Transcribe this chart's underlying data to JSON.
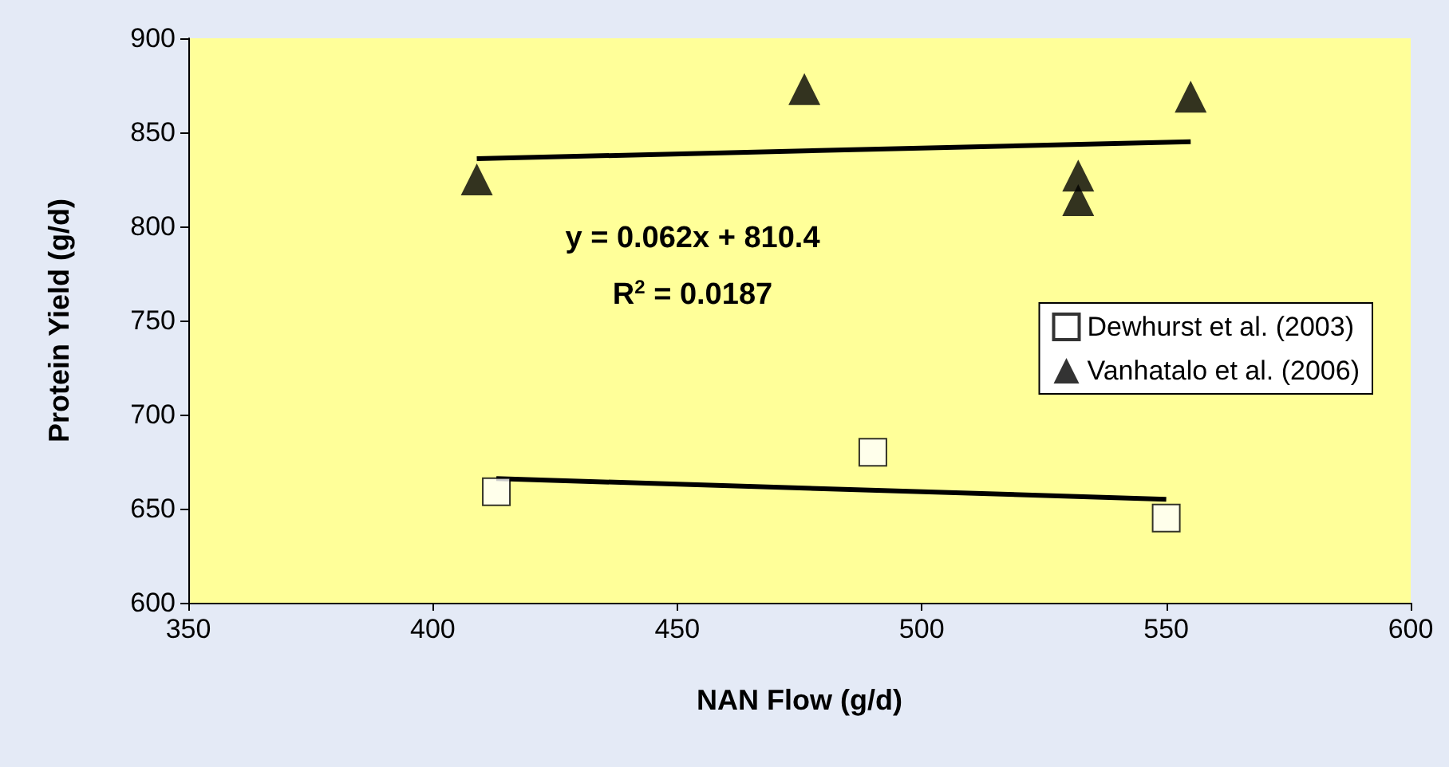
{
  "chart_data": {
    "type": "scatter",
    "xlabel": "NAN Flow (g/d)",
    "ylabel": "Protein Yield (g/d)",
    "xlim": [
      350,
      600
    ],
    "xticks": [
      350,
      400,
      450,
      500,
      550,
      600
    ],
    "ylim": [
      600,
      900
    ],
    "yticks": [
      600,
      650,
      700,
      750,
      800,
      850,
      900
    ],
    "grid": false,
    "legend": "right",
    "annotations": [
      "y = 0.062x + 810.4",
      "R$^{2}$ = 0.0187"
    ],
    "series": [
      {
        "name": "Dewhurst et al. (2003)",
        "marker": "square",
        "color": "#000000",
        "x": [
          413,
          490,
          550
        ],
        "values": [
          659,
          680,
          645
        ]
      },
      {
        "name": "Vanhatalo et al. (2006)",
        "marker": "triangle",
        "color": "#000000",
        "x": [
          409,
          476,
          532,
          532,
          555
        ],
        "values": [
          825,
          873,
          827,
          814,
          869
        ]
      },
      {
        "type": "line",
        "marker": "none",
        "color": "#000000",
        "x": [
          413,
          550
        ],
        "values": [
          666,
          655
        ]
      },
      {
        "type": "line",
        "marker": "none",
        "color": "#000000",
        "x": [
          409,
          555
        ],
        "values": [
          836,
          845
        ]
      }
    ]
  }
}
